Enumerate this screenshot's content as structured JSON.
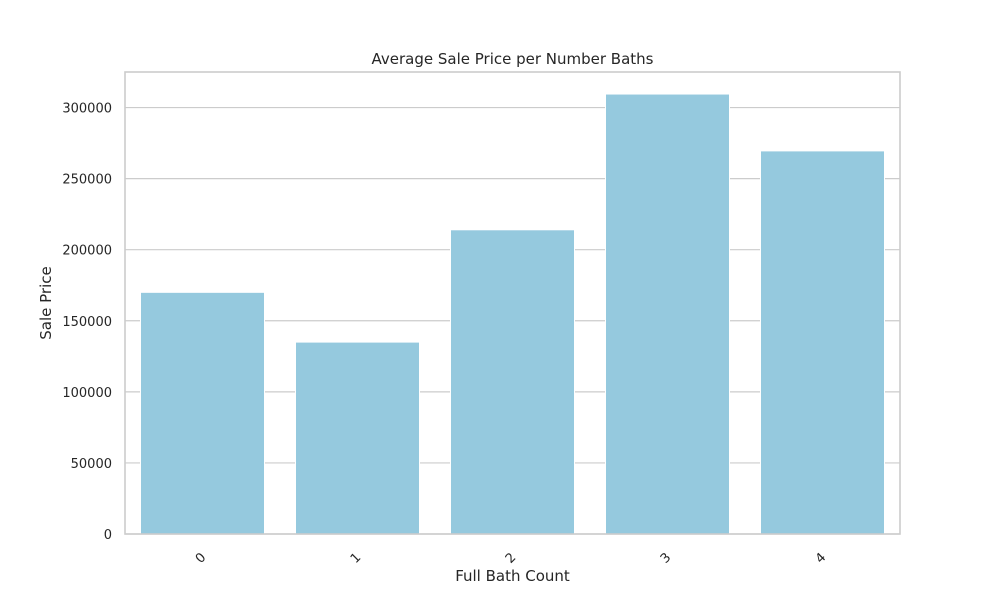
{
  "chart_data": {
    "type": "bar",
    "title": "Average Sale Price per Number Baths",
    "xlabel": "Full Bath Count",
    "ylabel": "Sale Price",
    "categories": [
      "0",
      "1",
      "2",
      "3",
      "4"
    ],
    "values": [
      170000,
      135000,
      214000,
      309500,
      269500
    ],
    "ylim": [
      0,
      325000
    ],
    "yticks": [
      0,
      50000,
      100000,
      150000,
      200000,
      250000,
      300000
    ],
    "ytick_labels": [
      "0",
      "50000",
      "100000",
      "150000",
      "200000",
      "250000",
      "300000"
    ],
    "xtick_rotation": 45,
    "grid": "horizontal",
    "legend": "none",
    "colors": {
      "bar": "#95C9DE",
      "grid": "#CCCCCC",
      "frame": "#CCCCCC",
      "text": "#262626",
      "background": "#FFFFFF"
    }
  }
}
